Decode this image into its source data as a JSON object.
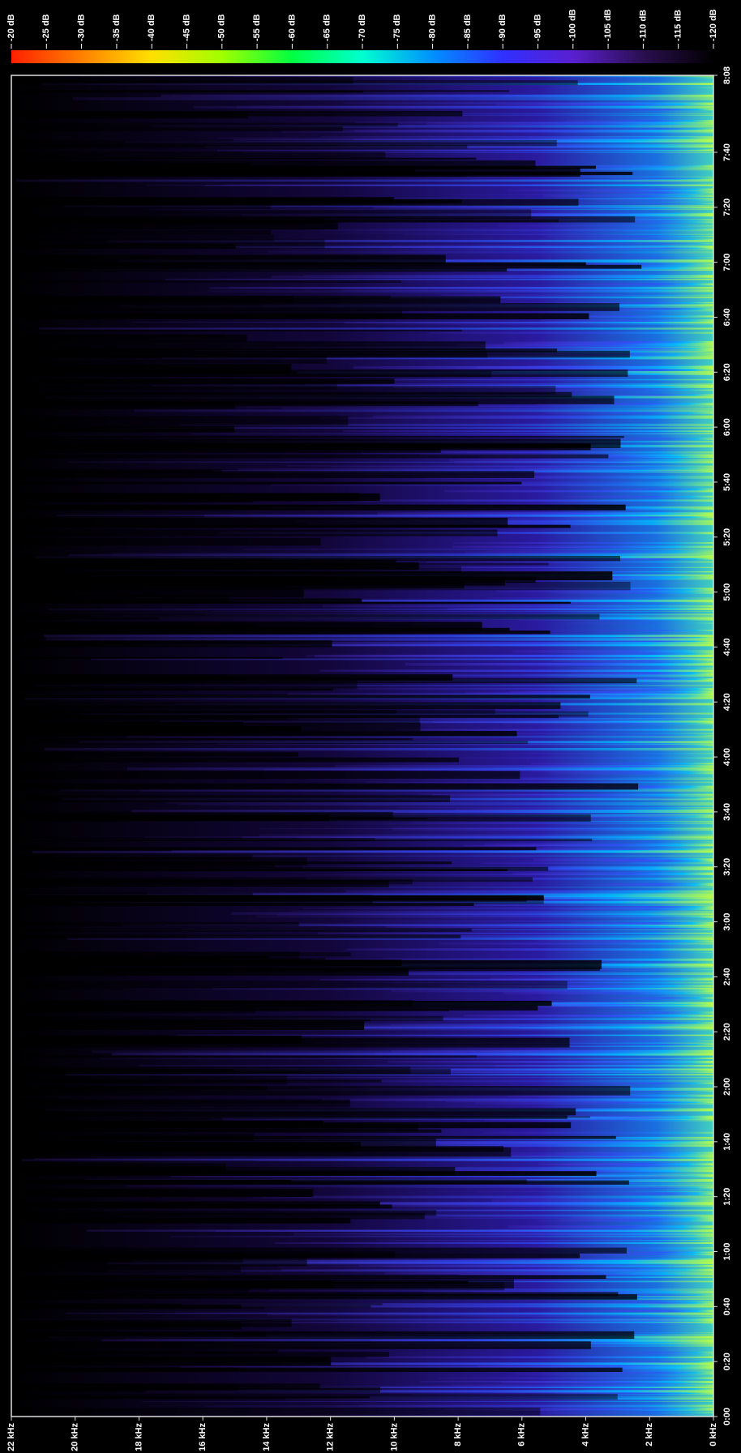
{
  "chart_data": {
    "type": "spectrogram",
    "xlim": [
      22,
      0
    ],
    "xticks": [
      {
        "value": 22,
        "label": "22 kHz"
      },
      {
        "value": 20,
        "label": "20 kHz"
      },
      {
        "value": 18,
        "label": "18 kHz"
      },
      {
        "value": 16,
        "label": "16 kHz"
      },
      {
        "value": 14,
        "label": "14 kHz"
      },
      {
        "value": 12,
        "label": "12 kHz"
      },
      {
        "value": 10,
        "label": "10 kHz"
      },
      {
        "value": 8,
        "label": "8 kHz"
      },
      {
        "value": 6,
        "label": "6 kHz"
      },
      {
        "value": 4,
        "label": "4 kHz"
      },
      {
        "value": 2,
        "label": "2 kHz"
      },
      {
        "value": 0,
        "label": "0 kHz"
      }
    ],
    "ylim": [
      0,
      488
    ],
    "yticks": [
      {
        "value": 0,
        "label": "0:00"
      },
      {
        "value": 20,
        "label": "0:20"
      },
      {
        "value": 40,
        "label": "0:40"
      },
      {
        "value": 60,
        "label": "1:00"
      },
      {
        "value": 80,
        "label": "1:20"
      },
      {
        "value": 100,
        "label": "1:40"
      },
      {
        "value": 120,
        "label": "2:00"
      },
      {
        "value": 140,
        "label": "2:20"
      },
      {
        "value": 160,
        "label": "2:40"
      },
      {
        "value": 180,
        "label": "3:00"
      },
      {
        "value": 200,
        "label": "3:20"
      },
      {
        "value": 220,
        "label": "3:40"
      },
      {
        "value": 240,
        "label": "4:00"
      },
      {
        "value": 260,
        "label": "4:20"
      },
      {
        "value": 280,
        "label": "4:40"
      },
      {
        "value": 300,
        "label": "5:00"
      },
      {
        "value": 320,
        "label": "5:20"
      },
      {
        "value": 340,
        "label": "5:40"
      },
      {
        "value": 360,
        "label": "6:00"
      },
      {
        "value": 380,
        "label": "6:20"
      },
      {
        "value": 400,
        "label": "6:40"
      },
      {
        "value": 420,
        "label": "7:00"
      },
      {
        "value": 440,
        "label": "7:20"
      },
      {
        "value": 460,
        "label": "7:40"
      },
      {
        "value": 488,
        "label": "8:08"
      }
    ],
    "colorbar": {
      "lim": [
        -20,
        -120
      ],
      "colors": [
        "#ff2000",
        "#ff8000",
        "#ffe000",
        "#a0ff00",
        "#00ff40",
        "#00ffd0",
        "#0090ff",
        "#3030ff",
        "#5a1fd0",
        "#2a0f50",
        "#000000"
      ],
      "ticks": [
        {
          "value": -20,
          "label": "-20 dB"
        },
        {
          "value": -25,
          "label": "-25 dB"
        },
        {
          "value": -30,
          "label": "-30 dB"
        },
        {
          "value": -35,
          "label": "-35 dB"
        },
        {
          "value": -40,
          "label": "-40 dB"
        },
        {
          "value": -45,
          "label": "-45 dB"
        },
        {
          "value": -50,
          "label": "-50 dB"
        },
        {
          "value": -55,
          "label": "-55 dB"
        },
        {
          "value": -60,
          "label": "-60 dB"
        },
        {
          "value": -65,
          "label": "-65 dB"
        },
        {
          "value": -70,
          "label": "-70 dB"
        },
        {
          "value": -75,
          "label": "-75 dB"
        },
        {
          "value": -80,
          "label": "-80 dB"
        },
        {
          "value": -85,
          "label": "-85 dB"
        },
        {
          "value": -90,
          "label": "-90 dB"
        },
        {
          "value": -95,
          "label": "-95 dB"
        },
        {
          "value": -100,
          "label": "-100 dB"
        },
        {
          "value": -105,
          "label": "-105 dB"
        },
        {
          "value": -110,
          "label": "-110 dB"
        },
        {
          "value": -115,
          "label": "-115 dB"
        },
        {
          "value": -120,
          "label": "-120 dB"
        }
      ]
    }
  }
}
